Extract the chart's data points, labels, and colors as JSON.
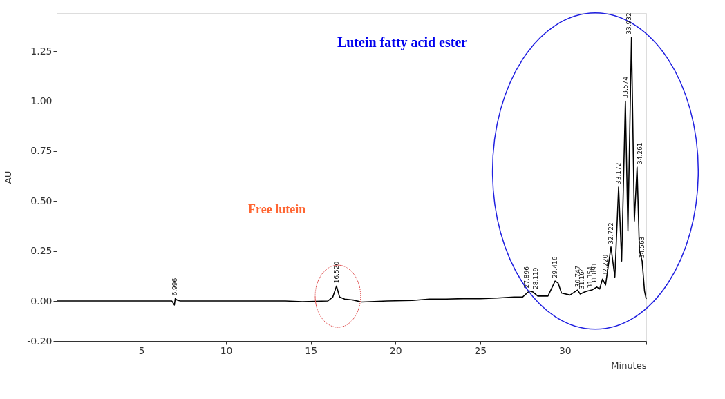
{
  "chart_data": {
    "type": "line",
    "xlabel": "Minutes",
    "ylabel": "AU",
    "color": "#000000",
    "grid": false,
    "marker": "none",
    "line_style": "solid",
    "xlim": [
      0,
      34.8
    ],
    "xticks": [
      {
        "value": 0,
        "label": null
      },
      5,
      10,
      15,
      20,
      25,
      30,
      {
        "value": 34.8,
        "label": null
      }
    ],
    "ylim": [
      -0.2,
      1.44
    ],
    "yticks": [
      {
        "value": -0.2,
        "label": "-0.20"
      },
      {
        "value": 0,
        "label": "0.00"
      },
      {
        "value": 0.25,
        "label": "0.25"
      },
      {
        "value": 0.5,
        "label": "0.50"
      },
      {
        "value": 0.75,
        "label": "0.75"
      },
      {
        "value": 1,
        "label": "1.00"
      },
      {
        "value": 1.25,
        "label": "1.25"
      }
    ],
    "x": [
      0,
      6.8,
      6.95,
      7.0,
      7.1,
      7.3,
      13.5,
      14.5,
      16.0,
      16.3,
      16.52,
      16.7,
      17.0,
      17.5,
      18,
      19.5,
      21,
      22,
      23,
      24,
      25,
      26,
      27,
      27.5,
      27.9,
      28.12,
      28.4,
      29,
      29.2,
      29.42,
      29.6,
      29.8,
      30.3,
      30.75,
      30.9,
      31.16,
      31.35,
      31.6,
      31.89,
      32.05,
      32.22,
      32.4,
      32.72,
      32.95,
      33.17,
      33.35,
      33.57,
      33.72,
      33.93,
      34.1,
      34.26,
      34.4,
      34.56,
      34.7,
      34.8
    ],
    "values": [
      0,
      0,
      -0.02,
      0.012,
      0.005,
      0,
      0,
      -0.003,
      0,
      0.02,
      0.075,
      0.02,
      0.01,
      0.005,
      -0.005,
      0,
      0.003,
      0.01,
      0.01,
      0.012,
      0.012,
      0.015,
      0.02,
      0.02,
      0.05,
      0.045,
      0.025,
      0.025,
      0.06,
      0.1,
      0.09,
      0.04,
      0.03,
      0.055,
      0.035,
      0.045,
      0.05,
      0.055,
      0.07,
      0.06,
      0.11,
      0.08,
      0.27,
      0.12,
      0.57,
      0.2,
      1.0,
      0.35,
      1.32,
      0.4,
      0.67,
      0.25,
      0.2,
      0.05,
      0.01
    ],
    "annotations": [
      "Lutein fatty acid ester",
      "Free lutein",
      {
        "text": "6.996",
        "x": 6.996,
        "y": 0.012
      },
      {
        "text": "16.520",
        "x": 16.52,
        "y": 0.075
      },
      {
        "text": "27.896",
        "x": 27.9,
        "y": 0.05
      },
      {
        "text": "28.119",
        "x": 28.12,
        "y": 0.045
      },
      {
        "text": "29.416",
        "x": 29.42,
        "y": 0.1
      },
      {
        "text": "30.747",
        "x": 30.75,
        "y": 0.055
      },
      {
        "text": "31.164",
        "x": 31.16,
        "y": 0.045
      },
      {
        "text": "31.354",
        "x": 31.35,
        "y": 0.05
      },
      {
        "text": "31.891",
        "x": 31.89,
        "y": 0.07
      },
      {
        "text": "32.220",
        "x": 32.22,
        "y": 0.11
      },
      {
        "text": "32.722",
        "x": 32.72,
        "y": 0.27
      },
      {
        "text": "33.172",
        "x": 33.17,
        "y": 0.57
      },
      {
        "text": "33.574",
        "x": 33.57,
        "y": 1.0
      },
      {
        "text": "33.932",
        "x": 33.93,
        "y": 1.32
      },
      {
        "text": "34.261",
        "x": 34.26,
        "y": 0.67
      },
      {
        "text": "34.563",
        "x": 34.56,
        "y": 0.2
      }
    ]
  }
}
